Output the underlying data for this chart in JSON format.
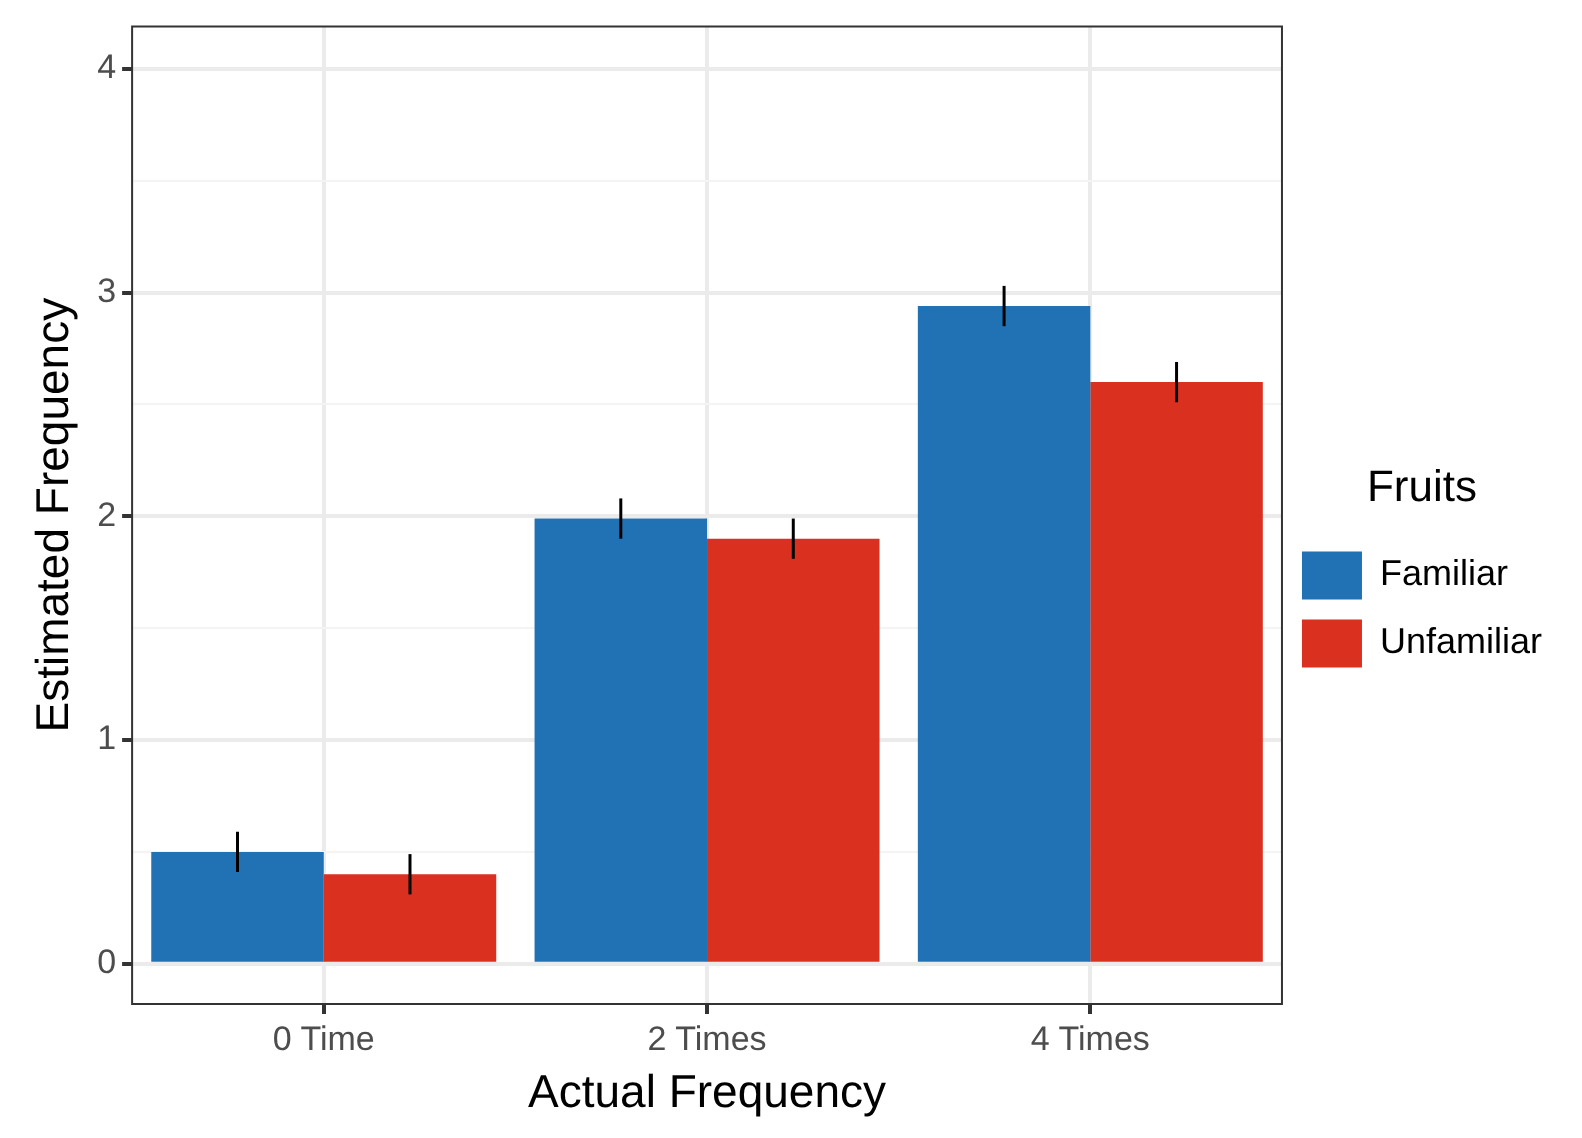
{
  "chart_data": {
    "type": "bar",
    "xlabel": "Actual Frequency",
    "ylabel": "Estimated Frequency",
    "legend_title": "Fruits",
    "categories": [
      "0 Time",
      "2 Times",
      "4 Times"
    ],
    "series": [
      {
        "name": "Familiar",
        "color": "#2171b5",
        "values": [
          0.5,
          1.99,
          2.94
        ],
        "errors": [
          0.09,
          0.09,
          0.09
        ]
      },
      {
        "name": "Unfamiliar",
        "color": "#d93020",
        "values": [
          0.4,
          1.9,
          2.6
        ],
        "errors": [
          0.09,
          0.09,
          0.09
        ]
      }
    ],
    "ylim": [
      -0.18,
      4.19
    ],
    "yticks": [
      0,
      {
        "value": 0.5,
        "label": null
      },
      1,
      {
        "value": 1.5,
        "label": null
      },
      2,
      {
        "value": 2.5,
        "label": null
      },
      3,
      {
        "value": 3.5,
        "label": null
      },
      4
    ],
    "grid": true,
    "legend": "right"
  }
}
